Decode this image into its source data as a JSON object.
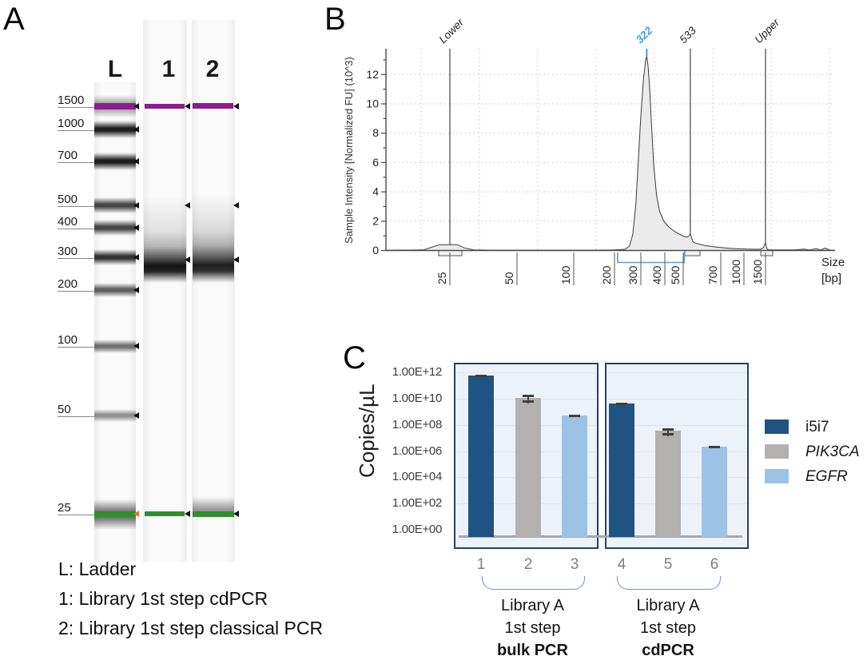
{
  "panel_a": {
    "label": "A",
    "lane_headers": [
      "L",
      "1",
      "2"
    ],
    "ladder_labels": [
      "1500",
      "1000",
      "700",
      "500",
      "400",
      "300",
      "200",
      "100",
      "50",
      "25"
    ],
    "legend_lines": [
      "L: Ladder",
      "1: Library 1st step cdPCR",
      "2: Library 1st step classical PCR"
    ],
    "colors": {
      "upper_marker_purple": "#8e1b8e",
      "lower_marker_green": "#2e8f2e",
      "ladder_arrow_orange": "#e8731a",
      "band_arrow_black": "#111111"
    }
  },
  "panel_b": {
    "label": "B",
    "chart_data": {
      "type": "area",
      "title": "",
      "ylabel": "Sample Intensity [Normalized FU] (10^3)",
      "xlabel_lines": [
        "Size",
        "[bp]"
      ],
      "y_ticks": [
        0,
        2,
        4,
        6,
        8,
        10,
        12
      ],
      "x_ticks": [
        25,
        50,
        100,
        200,
        300,
        400,
        500,
        700,
        1000,
        1500
      ],
      "ylim": [
        0,
        13.7
      ],
      "grid": "dotted",
      "markers": [
        {
          "name": "Lower",
          "bp": 25,
          "highlight": false
        },
        {
          "name": "322",
          "bp": 322,
          "highlight": true
        },
        {
          "name": "533",
          "bp": 533,
          "highlight": false
        },
        {
          "name": "Upper",
          "bp": 1500,
          "highlight": false
        }
      ],
      "peak_bp": 322,
      "peak_value": 13.25,
      "region": {
        "start_bp": 210,
        "end_bp": 505
      },
      "marker_blue": "#3da0dc",
      "region_blue": "#5b9bd5",
      "trace": [
        [
          13,
          0.02
        ],
        [
          19,
          0.04
        ],
        [
          21,
          0.25
        ],
        [
          22.5,
          0.4
        ],
        [
          27,
          0.4
        ],
        [
          29,
          0.18
        ],
        [
          32,
          0.04
        ],
        [
          40,
          0.02
        ],
        [
          120,
          0.02
        ],
        [
          200,
          0.04
        ],
        [
          235,
          0.08
        ],
        [
          252,
          0.3
        ],
        [
          265,
          1.1
        ],
        [
          278,
          3.2
        ],
        [
          290,
          6.5
        ],
        [
          300,
          9.2
        ],
        [
          310,
          11.8
        ],
        [
          318,
          13.0
        ],
        [
          322,
          13.25
        ],
        [
          327,
          12.6
        ],
        [
          333,
          11.2
        ],
        [
          340,
          8.8
        ],
        [
          350,
          5.8
        ],
        [
          362,
          3.8
        ],
        [
          375,
          2.7
        ],
        [
          395,
          2.0
        ],
        [
          420,
          1.6
        ],
        [
          450,
          1.3
        ],
        [
          480,
          1.1
        ],
        [
          505,
          0.95
        ],
        [
          520,
          0.92
        ],
        [
          528,
          1.02
        ],
        [
          533,
          1.15
        ],
        [
          539,
          0.85
        ],
        [
          546,
          0.6
        ],
        [
          558,
          0.5
        ],
        [
          575,
          0.44
        ],
        [
          610,
          0.33
        ],
        [
          660,
          0.25
        ],
        [
          720,
          0.19
        ],
        [
          820,
          0.14
        ],
        [
          950,
          0.11
        ],
        [
          1100,
          0.09
        ],
        [
          1250,
          0.08
        ],
        [
          1380,
          0.1
        ],
        [
          1450,
          0.22
        ],
        [
          1485,
          0.45
        ],
        [
          1500,
          0.52
        ],
        [
          1520,
          0.3
        ],
        [
          1545,
          0.1
        ],
        [
          1600,
          0.05
        ],
        [
          2000,
          0.04
        ],
        [
          2600,
          0.04
        ],
        [
          3100,
          0.1
        ],
        [
          3400,
          0.04
        ],
        [
          3900,
          0.13
        ],
        [
          4200,
          0.03
        ],
        [
          4600,
          0.16
        ],
        [
          5000,
          0.03
        ]
      ]
    }
  },
  "panel_c": {
    "label": "C",
    "chart_data": {
      "type": "bar",
      "categories": [
        "1",
        "2",
        "3",
        "4",
        "5",
        "6"
      ],
      "values": [
        600000000000.0,
        12000000000.0,
        550000000.0,
        4500000000.0,
        35000000.0,
        2300000.0
      ],
      "series_of_bars": [
        "i5i7",
        "PIK3CA",
        "EGFR",
        "i5i7",
        "PIK3CA",
        "EGFR"
      ],
      "error_log10_half": [
        0.05,
        0.2,
        0.05,
        0.05,
        0.18,
        0.06
      ],
      "ylabel": "Copies/µL",
      "y_tick_labels": [
        "1.00E+00",
        "1.00E+02",
        "1.00E+04",
        "1.00E+06",
        "1.00E+08",
        "1.00E+10",
        "1.00E+12"
      ],
      "ylim_log10": [
        0,
        12
      ],
      "legend_position": "right",
      "legend": [
        {
          "label": "i5i7",
          "color": "#1f5382",
          "italic": false
        },
        {
          "label": "PIK3CA",
          "color": "#b3b0b0",
          "italic": true
        },
        {
          "label": "EGFR",
          "color": "#9cc3e5",
          "italic": true
        }
      ],
      "groups": [
        {
          "bars": [
            "1",
            "2",
            "3"
          ],
          "label_lines": [
            "Library A",
            "1st step",
            "bulk PCR"
          ]
        },
        {
          "bars": [
            "4",
            "5",
            "6"
          ],
          "label_lines": [
            "Library A",
            "1st step",
            "cdPCR"
          ]
        }
      ]
    }
  }
}
